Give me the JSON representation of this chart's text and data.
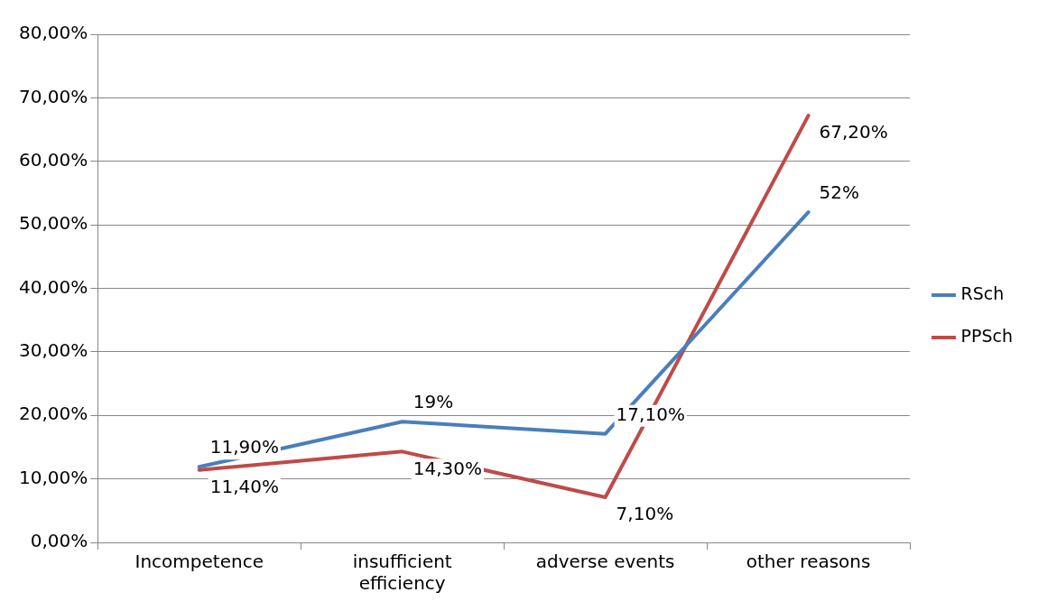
{
  "chart_data": {
    "type": "line",
    "categories": [
      "Incompetence",
      "insufficient efficiency",
      "adverse events",
      "other reasons"
    ],
    "series": [
      {
        "name": "RSch",
        "color": "#4a7ebb",
        "values": [
          11.9,
          19,
          17.1,
          52
        ],
        "value_labels": [
          "11,90%",
          "19%",
          "17,10%",
          "52%"
        ]
      },
      {
        "name": "PPSch",
        "color": "#be4b48",
        "values": [
          11.4,
          14.3,
          7.1,
          67.2
        ],
        "value_labels": [
          "11,40%",
          "14,30%",
          "7,10%",
          "67,20%"
        ]
      }
    ],
    "ylim": [
      0,
      80
    ],
    "yticks": [
      {
        "value": 0,
        "label": "0,00%"
      },
      {
        "value": 10,
        "label": "10,00%"
      },
      {
        "value": 20,
        "label": "20,00%"
      },
      {
        "value": 30,
        "label": "30,00%"
      },
      {
        "value": 40,
        "label": "40,00%"
      },
      {
        "value": 50,
        "label": "50,00%"
      },
      {
        "value": 60,
        "label": "60,00%"
      },
      {
        "value": 70,
        "label": "70,00%"
      },
      {
        "value": 80,
        "label": "80,00%"
      }
    ],
    "grid": "y",
    "legend": "right",
    "marker": "none",
    "line_style": "solid"
  }
}
